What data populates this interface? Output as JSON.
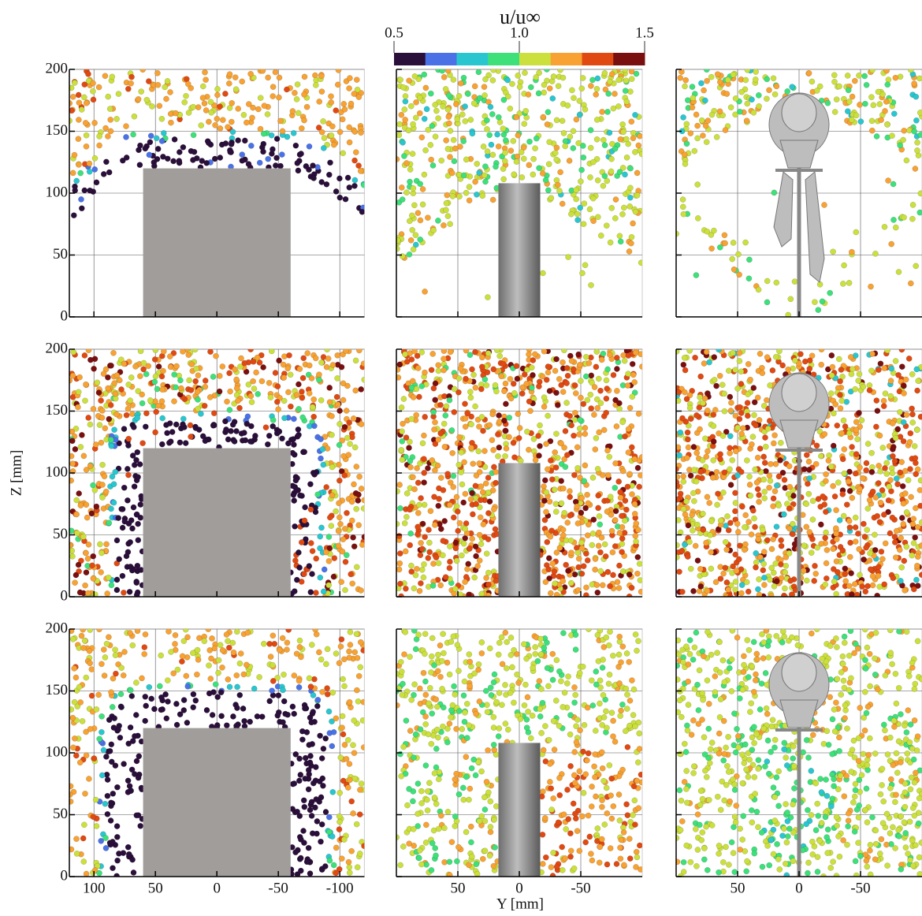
{
  "figure": {
    "colorbar": {
      "label": "u/u∞",
      "lim": [
        0.5,
        1.5
      ],
      "ticks": [
        0.5,
        {
          "value": 1.0,
          "label": "1.0"
        },
        1.5
      ],
      "colors": [
        "#2b0f3b",
        "#4a72e6",
        "#2ac6cf",
        "#3ee07a",
        "#cbe03c",
        "#f7a232",
        "#e04a12",
        "#7a0f10"
      ]
    },
    "z_axis": {
      "label": "Z [mm]",
      "lim": [
        0,
        200
      ],
      "ticks": [
        0,
        50,
        100,
        150,
        200
      ]
    },
    "y_axis": {
      "label": "Y [mm]",
      "columns": [
        {
          "lim": [
            120,
            -120
          ],
          "ticks": [
            100,
            50,
            0,
            -50,
            -100
          ]
        },
        {
          "lim": [
            100,
            -100
          ],
          "ticks": [
            50,
            0,
            -50
          ]
        },
        {
          "lim": [
            100,
            -100
          ],
          "ticks": [
            50,
            0,
            -50
          ]
        }
      ]
    },
    "grid": true
  }
}
